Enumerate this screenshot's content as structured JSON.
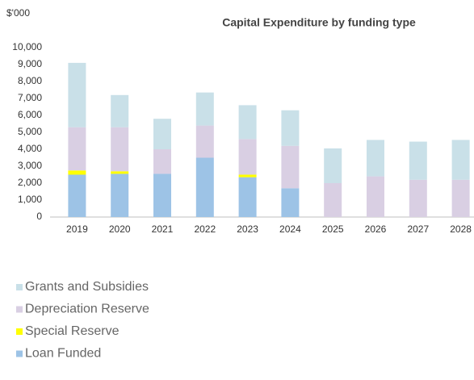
{
  "chart_data": {
    "type": "stacked_bar",
    "title": "Capital Expenditure by funding type",
    "ylabel": "$'000",
    "categories": [
      "2019",
      "2020",
      "2021",
      "2022",
      "2023",
      "2024",
      "2025",
      "2026",
      "2027",
      "2028"
    ],
    "series": [
      {
        "name": "Loan Funded",
        "color": "#9dc3e6",
        "values": [
          2500,
          2550,
          2550,
          3500,
          2350,
          1700,
          0,
          0,
          0,
          0
        ]
      },
      {
        "name": "Special Reserve",
        "color": "#ffff00",
        "values": [
          250,
          150,
          0,
          0,
          150,
          0,
          0,
          0,
          0,
          0
        ]
      },
      {
        "name": "Depreciation Reserve",
        "color": "#d9cfe3",
        "values": [
          2550,
          2600,
          1450,
          1900,
          2100,
          2500,
          2000,
          2400,
          2200,
          2200
        ]
      },
      {
        "name": "Grants and Subsidies",
        "color": "#c9e0e8",
        "values": [
          3800,
          1900,
          1800,
          1950,
          2000,
          2100,
          2050,
          2150,
          2250,
          2350
        ]
      }
    ],
    "ylim": [
      0,
      10000
    ],
    "yticks": [
      0,
      {
        "value": 1000,
        "label": "1,000"
      },
      {
        "value": 2000,
        "label": "2,000"
      },
      {
        "value": 3000,
        "label": "3,000"
      },
      {
        "value": 4000,
        "label": "4,000"
      },
      {
        "value": 5000,
        "label": "5,000"
      },
      {
        "value": 6000,
        "label": "6,000"
      },
      {
        "value": 7000,
        "label": "7,000"
      },
      {
        "value": 8000,
        "label": "8,000"
      },
      {
        "value": 9000,
        "label": "9,000"
      },
      {
        "value": 10000,
        "label": "10,000"
      }
    ],
    "legend": "bottom-left"
  }
}
